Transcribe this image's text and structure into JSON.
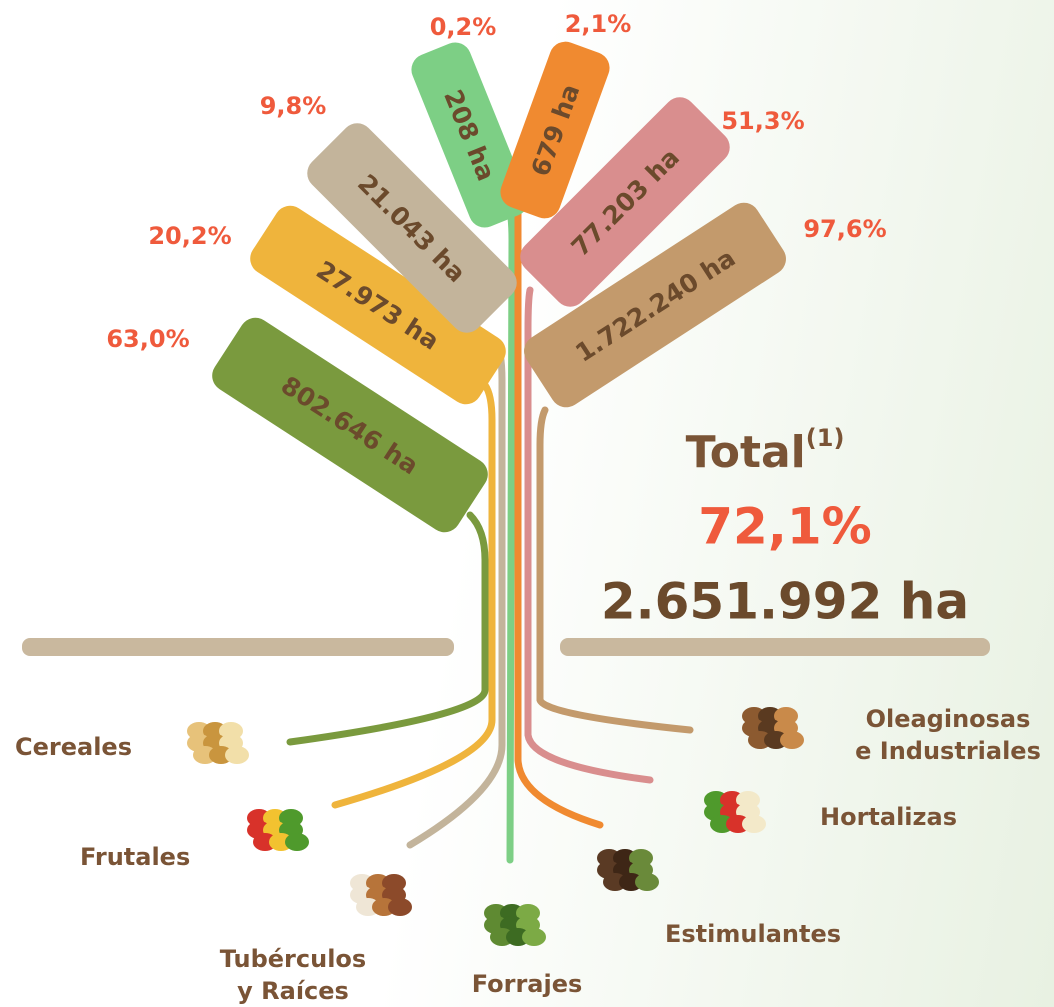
{
  "branches": [
    {
      "name": [
        "Cereales"
      ],
      "percent": "63,0%",
      "area": "802.646 ha"
    },
    {
      "name": [
        "Frutales"
      ],
      "percent": "20,2%",
      "area": "27.973 ha"
    },
    {
      "name": [
        "Tubérculos",
        "y Raíces"
      ],
      "percent": "9,8%",
      "area": "21.043 ha"
    },
    {
      "name": [
        "Forrajes"
      ],
      "percent": "0,2%",
      "area": "208 ha"
    },
    {
      "name": [
        "Estimulantes"
      ],
      "percent": "2,1%",
      "area": "679 ha"
    },
    {
      "name": [
        "Hortalizas"
      ],
      "percent": "51,3%",
      "area": "77.203 ha"
    },
    {
      "name": [
        "Oleaginosas",
        "e Industriales"
      ],
      "percent": "97,6%",
      "area": "1.722.240 ha"
    }
  ],
  "total": {
    "label": "Total",
    "note": "(1)",
    "percent": "72,1%",
    "area": "2.651.992 ha"
  }
}
